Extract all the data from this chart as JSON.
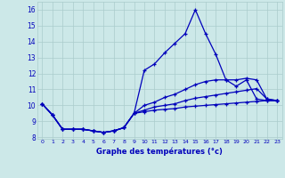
{
  "xlabel": "Graphe des températures (°c)",
  "background_color": "#cce8e8",
  "grid_color": "#aacccc",
  "line_color": "#0000bb",
  "x_hours": [
    0,
    1,
    2,
    3,
    4,
    5,
    6,
    7,
    8,
    9,
    10,
    11,
    12,
    13,
    14,
    15,
    16,
    17,
    18,
    19,
    20,
    21,
    22,
    23
  ],
  "line1": [
    10.1,
    9.4,
    8.5,
    8.5,
    8.5,
    8.4,
    8.3,
    8.4,
    8.6,
    9.5,
    12.2,
    12.6,
    13.3,
    13.9,
    14.5,
    16.0,
    14.5,
    13.2,
    11.6,
    11.2,
    11.6,
    10.4,
    10.3,
    10.3
  ],
  "line2": [
    10.1,
    9.4,
    8.5,
    8.5,
    8.5,
    8.4,
    8.3,
    8.4,
    8.6,
    9.5,
    10.0,
    10.2,
    10.5,
    10.7,
    11.0,
    11.3,
    11.5,
    11.6,
    11.6,
    11.6,
    11.7,
    11.6,
    10.4,
    10.3
  ],
  "line3": [
    10.1,
    9.4,
    8.5,
    8.5,
    8.5,
    8.4,
    8.3,
    8.4,
    8.6,
    9.5,
    9.7,
    9.9,
    10.0,
    10.1,
    10.3,
    10.45,
    10.55,
    10.65,
    10.75,
    10.85,
    10.95,
    11.05,
    10.4,
    10.3
  ],
  "line4": [
    10.1,
    9.4,
    8.5,
    8.5,
    8.5,
    8.4,
    8.3,
    8.4,
    8.6,
    9.5,
    9.6,
    9.7,
    9.75,
    9.8,
    9.9,
    9.95,
    10.0,
    10.05,
    10.1,
    10.15,
    10.2,
    10.25,
    10.3,
    10.3
  ],
  "ylim": [
    7.9,
    16.5
  ],
  "yticks": [
    8,
    9,
    10,
    11,
    12,
    13,
    14,
    15,
    16
  ],
  "xlim": [
    -0.5,
    23.5
  ]
}
